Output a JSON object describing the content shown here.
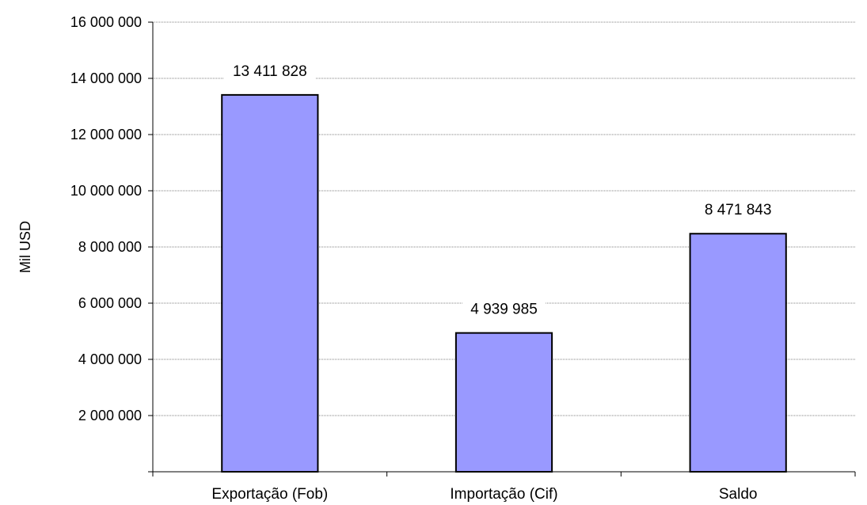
{
  "chart_data": {
    "type": "bar",
    "categories": [
      "Exportação (Fob)",
      "Importação (Cif)",
      "Saldo"
    ],
    "values": [
      13411828,
      4939985,
      8471843
    ],
    "data_labels": [
      "13 411 828",
      "4 939 985",
      "8 471 843"
    ],
    "title": "",
    "xlabel": "",
    "ylabel": "Mil USD",
    "ylim": [
      0,
      16000000
    ],
    "y_ticks": [
      2000000,
      4000000,
      6000000,
      8000000,
      10000000,
      12000000,
      14000000,
      16000000
    ],
    "y_tick_labels": [
      "2 000 000",
      "4 000 000",
      "6 000 000",
      "8 000 000",
      "10 000 000",
      "12 000 000",
      "14 000 000",
      "16 000 000"
    ],
    "grid": true,
    "legend": "none",
    "colors": {
      "bar": "#9999ff",
      "bar_stroke": "#000000",
      "grid": "#808080",
      "axis": "#000000"
    }
  }
}
